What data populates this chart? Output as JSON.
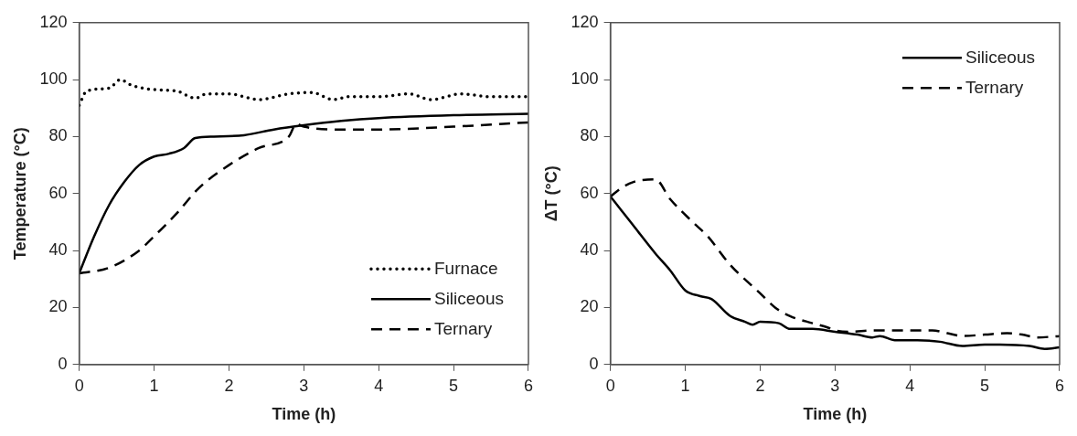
{
  "chart_data": [
    {
      "type": "line",
      "xlabel": "Time (h)",
      "ylabel": "Temperature (°C)",
      "xlim": [
        0,
        6
      ],
      "xticks": [
        0,
        1,
        2,
        3,
        4,
        5,
        6
      ],
      "ylim": [
        0,
        120
      ],
      "yticks": [
        0,
        20,
        40,
        60,
        80,
        100,
        120
      ],
      "legend": "bottom right",
      "series": [
        {
          "name": "Furnace",
          "color": "#000000",
          "line_style": "dotted",
          "x": [
            0,
            0.1,
            0.4,
            0.55,
            0.7,
            1.0,
            1.3,
            1.55,
            1.7,
            2.0,
            2.4,
            2.8,
            3.1,
            3.4,
            3.6,
            4.0,
            4.4,
            4.7,
            5.1,
            5.5,
            6
          ],
          "values": [
            91,
            96,
            97,
            100,
            98,
            96.5,
            96,
            93.5,
            95,
            95,
            93,
            95,
            95.5,
            93,
            94,
            94,
            95,
            93,
            95,
            94,
            94
          ]
        },
        {
          "name": "Siliceous",
          "color": "#000000",
          "line_style": "solid",
          "x": [
            0,
            0.2,
            0.4,
            0.6,
            0.8,
            1.0,
            1.2,
            1.4,
            1.55,
            1.8,
            2.2,
            2.6,
            3.0,
            3.5,
            4,
            5,
            6
          ],
          "values": [
            32,
            45,
            56,
            64,
            70,
            73,
            74,
            76,
            79.5,
            80,
            80.5,
            82.5,
            84,
            85.5,
            86.5,
            87.5,
            88
          ]
        },
        {
          "name": "Ternary",
          "color": "#000000",
          "line_style": "dashed",
          "x": [
            0,
            0.4,
            0.8,
            1.0,
            1.3,
            1.6,
            2.0,
            2.4,
            2.8,
            2.9,
            3.0,
            3.5,
            4,
            5,
            6
          ],
          "values": [
            32,
            34,
            40,
            45,
            53,
            62,
            70,
            76,
            80,
            84.5,
            83.5,
            82.5,
            82.5,
            83.5,
            85
          ]
        }
      ]
    },
    {
      "type": "line",
      "xlabel": "Time (h)",
      "ylabel": "ΔT (°C)",
      "xlim": [
        0,
        6
      ],
      "xticks": [
        0,
        1,
        2,
        3,
        4,
        5,
        6
      ],
      "ylim": [
        0,
        120
      ],
      "yticks": [
        0,
        20,
        40,
        60,
        80,
        100,
        120
      ],
      "legend": "top right",
      "series": [
        {
          "name": "Siliceous",
          "color": "#000000",
          "line_style": "solid",
          "x": [
            0,
            0.15,
            0.3,
            0.6,
            0.8,
            1.0,
            1.2,
            1.35,
            1.6,
            1.8,
            1.9,
            2.0,
            2.25,
            2.4,
            2.7,
            3.0,
            3.3,
            3.5,
            3.6,
            3.8,
            4.1,
            4.4,
            4.7,
            5.0,
            5.2,
            5.6,
            5.8,
            6
          ],
          "values": [
            59,
            54,
            49,
            39,
            33,
            26,
            24,
            23,
            17,
            15,
            14,
            15,
            14.5,
            12.5,
            12.5,
            11.5,
            10.5,
            9.5,
            10,
            8.5,
            8.5,
            8,
            6.5,
            7,
            7,
            6.5,
            5.5,
            6
          ]
        },
        {
          "name": "Ternary",
          "color": "#000000",
          "line_style": "dashed",
          "x": [
            0,
            0.15,
            0.3,
            0.6,
            0.8,
            1.1,
            1.3,
            1.6,
            2.0,
            2.2,
            2.4,
            2.7,
            2.9,
            3.0,
            3.2,
            3.5,
            4,
            4.3,
            4.5,
            4.7,
            5,
            5.3,
            5.5,
            5.7,
            6
          ],
          "values": [
            59,
            62,
            64,
            65,
            58,
            50,
            45,
            35,
            25,
            20,
            17,
            14.5,
            13,
            12,
            11.5,
            12,
            12,
            12,
            11,
            10,
            10.5,
            11,
            10.5,
            9.5,
            10
          ]
        }
      ]
    }
  ]
}
